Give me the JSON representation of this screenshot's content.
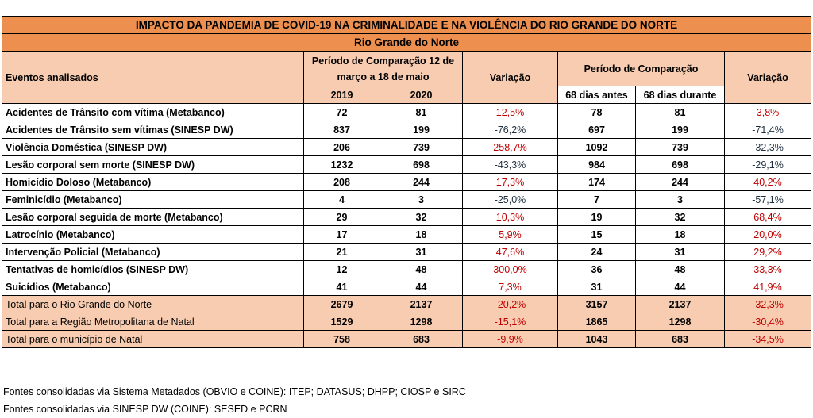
{
  "title": "IMPACTO DA PANDEMIA DE COVID-19 NA CRIMINALIDADE E NA VIOLÊNCIA DO RIO GRANDE DO NORTE",
  "region": "Rio Grande do Norte",
  "headers": {
    "events": "Eventos analisados",
    "period1": "Período de Comparação 12 de março a 18 de maio",
    "year1": "2019",
    "year2": "2020",
    "variation1": "Variação",
    "period2": "Período de Comparação",
    "before": "68 dias antes",
    "during": "68 dias durante",
    "variation2": "Variação"
  },
  "rows": [
    {
      "event": "Acidentes de Trânsito com vítima (Metabanco)",
      "y2019": "72",
      "y2020": "81",
      "var1": "12,5%",
      "before": "78",
      "during": "81",
      "var2": "3,8%"
    },
    {
      "event": "Acidentes de Trânsito sem vítimas (SINESP DW)",
      "y2019": "837",
      "y2020": "199",
      "var1": "-76,2%",
      "before": "697",
      "during": "199",
      "var2": "-71,4%"
    },
    {
      "event": "Violência Doméstica (SINESP DW)",
      "y2019": "206",
      "y2020": "739",
      "var1": "258,7%",
      "before": "1092",
      "during": "739",
      "var2": "-32,3%"
    },
    {
      "event": "Lesão corporal sem morte (SINESP DW)",
      "y2019": "1232",
      "y2020": "698",
      "var1": "-43,3%",
      "before": "984",
      "during": "698",
      "var2": "-29,1%"
    },
    {
      "event": "Homicídio Doloso (Metabanco)",
      "y2019": "208",
      "y2020": "244",
      "var1": "17,3%",
      "before": "174",
      "during": "244",
      "var2": "40,2%"
    },
    {
      "event": "Feminicídio (Metabanco)",
      "y2019": "4",
      "y2020": "3",
      "var1": "-25,0%",
      "before": "7",
      "during": "3",
      "var2": "-57,1%"
    },
    {
      "event": "Lesão corporal seguida de morte (Metabanco)",
      "y2019": "29",
      "y2020": "32",
      "var1": "10,3%",
      "before": "19",
      "during": "32",
      "var2": "68,4%"
    },
    {
      "event": "Latrocínio (Metabanco)",
      "y2019": "17",
      "y2020": "18",
      "var1": "5,9%",
      "before": "15",
      "during": "18",
      "var2": "20,0%"
    },
    {
      "event": "Intervenção Policial (Metabanco)",
      "y2019": "21",
      "y2020": "31",
      "var1": "47,6%",
      "before": "24",
      "during": "31",
      "var2": "29,2%"
    },
    {
      "event": "Tentativas de homicídios (SINESP DW)",
      "y2019": "12",
      "y2020": "48",
      "var1": "300,0%",
      "before": "36",
      "during": "48",
      "var2": "33,3%"
    },
    {
      "event": "Suicídios (Metabanco)",
      "y2019": "41",
      "y2020": "44",
      "var1": "7,3%",
      "before": "31",
      "during": "44",
      "var2": "41,9%"
    }
  ],
  "totals": [
    {
      "event": "Total para o Rio Grande do Norte",
      "y2019": "2679",
      "y2020": "2137",
      "var1": "-20,2%",
      "before": "3157",
      "during": "2137",
      "var2": "-32,3%"
    },
    {
      "event": "Total para a Região Metropolitana de Natal",
      "y2019": "1529",
      "y2020": "1298",
      "var1": "-15,1%",
      "before": "1865",
      "during": "1298",
      "var2": "-30,4%"
    },
    {
      "event": "Total para o município de Natal",
      "y2019": "758",
      "y2020": "683",
      "var1": "-9,9%",
      "before": "1043",
      "during": "683",
      "var2": "-34,5%"
    }
  ],
  "notes": [
    "Fontes consolidadas via Sistema Metadados (OBVIO e COINE): ITEP; DATASUS; DHPP; CIOSP e SIRC",
    "Fontes consolidadas via SINESP DW (COINE): SESED e PCRN"
  ],
  "colors": {
    "header": "#ed8f4f",
    "subheader": "#f8ccb0",
    "positive": "#c00000",
    "negative": "#1f2f3f"
  }
}
